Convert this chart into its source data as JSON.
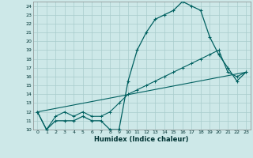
{
  "xlabel": "Humidex (Indice chaleur)",
  "xlim": [
    -0.5,
    23.5
  ],
  "ylim": [
    10,
    24.5
  ],
  "yticks": [
    10,
    11,
    12,
    13,
    14,
    15,
    16,
    17,
    18,
    19,
    20,
    21,
    22,
    23,
    24
  ],
  "xticks": [
    0,
    1,
    2,
    3,
    4,
    5,
    6,
    7,
    8,
    9,
    10,
    11,
    12,
    13,
    14,
    15,
    16,
    17,
    18,
    19,
    20,
    21,
    22,
    23
  ],
  "bg_color": "#cde8e8",
  "grid_color": "#a8cccc",
  "line_color": "#006060",
  "line1_x": [
    0,
    1,
    2,
    3,
    4,
    5,
    6,
    7,
    8,
    9,
    10,
    11,
    12,
    13,
    14,
    15,
    16,
    17,
    18,
    19,
    20,
    21,
    22,
    23
  ],
  "line1_y": [
    12,
    10,
    11,
    11,
    11,
    11.5,
    11,
    11,
    10,
    10,
    15.5,
    19,
    21,
    22.5,
    23,
    23.5,
    24.5,
    24,
    23.5,
    20.5,
    18.5,
    17,
    15.5,
    16.5
  ],
  "line2_x": [
    0,
    1,
    2,
    3,
    4,
    5,
    6,
    7,
    8,
    9,
    10,
    11,
    12,
    13,
    14,
    15,
    16,
    17,
    18,
    19,
    20,
    21,
    22,
    23
  ],
  "line2_y": [
    12,
    10,
    11.5,
    12,
    11.5,
    12,
    11.5,
    11.5,
    12,
    13,
    14,
    14.5,
    15,
    15.5,
    16,
    16.5,
    17,
    17.5,
    18,
    18.5,
    19,
    16.5,
    16,
    16.5
  ],
  "line3_x": [
    0,
    23
  ],
  "line3_y": [
    12,
    16.5
  ]
}
